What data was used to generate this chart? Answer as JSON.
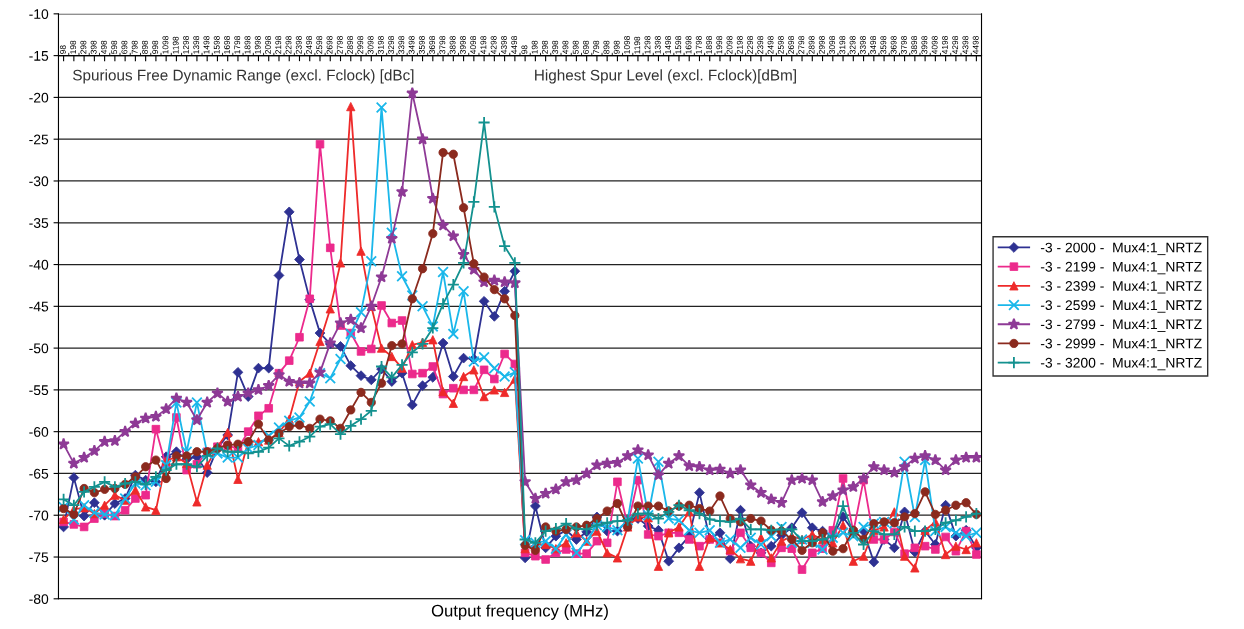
{
  "chart_data": {
    "type": "line",
    "xlabel": "Output frequency (MHz)",
    "categories": [
      "98",
      "198",
      "298",
      "398",
      "498",
      "598",
      "698",
      "798",
      "898",
      "998",
      "1098",
      "1198",
      "1298",
      "1398",
      "1498",
      "1598",
      "1698",
      "1798",
      "1898",
      "1998",
      "2098",
      "2198",
      "2298",
      "2398",
      "2498",
      "2598",
      "2698",
      "2798",
      "2898",
      "2998",
      "3098",
      "3198",
      "3298",
      "3398",
      "3498",
      "3598",
      "3698",
      "3798",
      "3898",
      "3998",
      "4098",
      "4198",
      "4298",
      "4398",
      "4498",
      "98",
      "198",
      "298",
      "398",
      "498",
      "598",
      "698",
      "798",
      "898",
      "998",
      "1098",
      "1198",
      "1298",
      "1398",
      "1498",
      "1598",
      "1698",
      "1798",
      "1898",
      "1998",
      "2098",
      "2198",
      "2298",
      "2398",
      "2498",
      "2598",
      "2698",
      "2798",
      "2898",
      "2998",
      "3098",
      "3198",
      "3298",
      "3398",
      "3498",
      "3598",
      "3698",
      "3798",
      "3898",
      "3998",
      "4098",
      "4198",
      "4298",
      "4398",
      "4498"
    ],
    "annotations": [
      "Spurious Free Dynamic Range (excl. Fclock) [dBc]",
      "Highest Spur Level (excl. Fclock)[dBm]"
    ],
    "ylim": [
      -80,
      -10
    ],
    "yticks": [
      -80,
      -75,
      -70,
      -65,
      -60,
      -55,
      -50,
      -45,
      -40,
      -35,
      -30,
      -25,
      -20,
      -15,
      -10
    ],
    "grid": "y",
    "legend": "right",
    "series": [
      {
        "name": "-3 - 2000 -  Mux4:1_NRTZ",
        "color": "#2e3192",
        "marker": "diamond",
        "values": [
          -71.4,
          -65.5,
          -70.1,
          -68.5,
          -70,
          -68.6,
          -68,
          -65.2,
          -65.8,
          -66,
          -63,
          -62.4,
          -63.3,
          -63,
          -64.9,
          -62,
          -60.4,
          -52.9,
          -55.8,
          -52.4,
          -52.4,
          -41.3,
          -33.7,
          -39.4,
          -44.2,
          -48.2,
          -49.5,
          -49.8,
          -52.1,
          -53.3,
          -53.8,
          -52.5,
          -54,
          -53,
          -56.8,
          -54.5,
          -53.5,
          -49.4,
          -53.4,
          -51.2,
          -51.3,
          -44.4,
          -46.2,
          -43.2,
          -40.8,
          -75.1,
          -68.9,
          -73.9,
          -72.5,
          -71.8,
          -72.9,
          -72,
          -70.2,
          -71.9,
          -71.9,
          -70.6,
          -70.4,
          -71.3,
          -71.8,
          -75.5,
          -73.9,
          -72.5,
          -67.3,
          -72.8,
          -72.1,
          -75.2,
          -69.4,
          -73.7,
          -74.5,
          -73.7,
          -72.4,
          -71.5,
          -69.7,
          -71.5,
          -71.9,
          -72.5,
          -70.2,
          -71.9,
          -71.9,
          -75.6,
          -72.9,
          -73.9,
          -69.6,
          -74.4,
          -71.9,
          -73.5,
          -68.8,
          -72.5,
          -71.8,
          -73.9
        ]
      },
      {
        "name": "-3 - 2199 -  Mux4:1_NRTZ",
        "color": "#ec2a8c",
        "marker": "square",
        "values": [
          -70.8,
          -71.1,
          -71.4,
          -70.4,
          -69.8,
          -70.1,
          -69.4,
          -68,
          -67.6,
          -59.7,
          -64.2,
          -58.3,
          -64.6,
          -63.9,
          -62.4,
          -61.8,
          -61.7,
          -62,
          -60,
          -58.1,
          -57.2,
          -53,
          -51.5,
          -48.7,
          -44.1,
          -25.6,
          -38,
          -47.3,
          -48.2,
          -50.4,
          -50.1,
          -44.9,
          -47,
          -46.7,
          -53.1,
          -53,
          -52.2,
          -55.5,
          -54.8,
          -55,
          -55,
          -52.6,
          -53.7,
          -50.7,
          -51.9,
          -74.5,
          -74.9,
          -75.3,
          -74.5,
          -74.1,
          -74.6,
          -74.6,
          -73.1,
          -73.3,
          -66,
          -71.2,
          -65.8,
          -72.3,
          -72.5,
          -72.1,
          -72.1,
          -72.9,
          -73.7,
          -72.9,
          -73.3,
          -74.3,
          -72.1,
          -73.9,
          -74.5,
          -75.7,
          -73.9,
          -74,
          -76.5,
          -74.5,
          -74,
          -71.8,
          -65.6,
          -72,
          -65.8,
          -72.9,
          -72.9,
          -72,
          -74.6,
          -73.9,
          -73.7,
          -74.1,
          -72.6,
          -74.3,
          -71.9,
          -74.7
        ]
      },
      {
        "name": "-3 - 2399 -  Mux4:1_NRTZ",
        "color": "#ee2a2a",
        "marker": "triangle",
        "values": [
          -70.5,
          -69.3,
          -69.1,
          -69.8,
          -68.8,
          -67.6,
          -68.2,
          -67,
          -69,
          -69.4,
          -63.5,
          -63,
          -63.8,
          -68.4,
          -64,
          -61.8,
          -60.1,
          -65.7,
          -61.2,
          -61.2,
          -61,
          -60.1,
          -58.5,
          -54,
          -53,
          -49.2,
          -45.3,
          -39.8,
          -21.1,
          -38.4,
          -45,
          -50,
          -51,
          -52.4,
          -49.6,
          -49.3,
          -49,
          -55.2,
          -56.6,
          -53.4,
          -52.6,
          -55.8,
          -55,
          -55.3,
          -53.7,
          -74,
          -73.5,
          -73.5,
          -74,
          -73.3,
          -72.1,
          -73.1,
          -71.9,
          -74.5,
          -75.1,
          -71.4,
          -70.2,
          -70.3,
          -76.1,
          -72.1,
          -71.4,
          -69.6,
          -76.1,
          -72.7,
          -73.3,
          -74.1,
          -75.2,
          -75.5,
          -72.7,
          -75.1,
          -73.1,
          -72.5,
          -72.9,
          -72.3,
          -72.9,
          -73.3,
          -71.2,
          -75.5,
          -74.9,
          -71.8,
          -71.4,
          -69.6,
          -74.9,
          -76.3,
          -71.8,
          -70.8,
          -74.7,
          -73.7,
          -74.1,
          -73.3
        ]
      },
      {
        "name": "-3 - 2599 -  Mux4:1_NRTZ",
        "color": "#1ab7ea",
        "marker": "cross",
        "values": [
          -69,
          -70.5,
          -68.8,
          -69.7,
          -69.9,
          -70,
          -68,
          -66.2,
          -66.4,
          -66,
          -64,
          -56.5,
          -62.4,
          -56.5,
          -62.6,
          -62.6,
          -63.1,
          -63.1,
          -62,
          -61.6,
          -60.5,
          -59.5,
          -58.7,
          -58.3,
          -56.4,
          -53,
          -53.6,
          -51.3,
          -48.3,
          -45.7,
          -39.6,
          -21.2,
          -36.2,
          -41.4,
          -43.7,
          -45,
          -47.4,
          -40.9,
          -48.3,
          -43.2,
          -51.6,
          -51.1,
          -52.4,
          -53.4,
          -52.9,
          -73,
          -73.3,
          -73.1,
          -74,
          -72.3,
          -74.5,
          -73.1,
          -71.2,
          -71.4,
          -71.8,
          -70.6,
          -63.2,
          -70,
          -63.6,
          -70.4,
          -70.6,
          -71.8,
          -72.1,
          -71.8,
          -73.3,
          -72.9,
          -73.9,
          -72.7,
          -73.5,
          -72.5,
          -71.4,
          -73.3,
          -72.9,
          -73.3,
          -74.1,
          -72.7,
          -72.1,
          -72.5,
          -71.4,
          -71,
          -70.8,
          -71,
          -63.6,
          -70.2,
          -63.4,
          -71.9,
          -71.4,
          -72.1,
          -72.5,
          -72.1
        ]
      },
      {
        "name": "-3 - 2799 -  Mux4:1_NRTZ",
        "color": "#8e3a96",
        "marker": "star",
        "values": [
          -61.5,
          -63.8,
          -63.1,
          -62.3,
          -61.2,
          -61.1,
          -60,
          -59,
          -58.4,
          -58.2,
          -57.3,
          -56,
          -56.5,
          -58.6,
          -56.5,
          -55.4,
          -56.4,
          -55.8,
          -55.4,
          -55,
          -54.5,
          -53.2,
          -54,
          -54.2,
          -54.2,
          -52.9,
          -49.4,
          -47,
          -46.6,
          -47.6,
          -45,
          -41.5,
          -36.9,
          -31.3,
          -19.5,
          -25,
          -32.1,
          -35.3,
          -36.6,
          -38.8,
          -40.6,
          -42.1,
          -41.9,
          -42.1,
          -42.2,
          -66,
          -68,
          -67.4,
          -66.9,
          -66,
          -65.8,
          -65,
          -64,
          -63.8,
          -63.7,
          -62.9,
          -62.2,
          -62.8,
          -65.2,
          -63.8,
          -62.9,
          -64.1,
          -64.2,
          -64.6,
          -64.5,
          -65,
          -64.6,
          -66.4,
          -67.3,
          -68.1,
          -68.5,
          -65.8,
          -65.6,
          -65.8,
          -68.4,
          -67.7,
          -67,
          -66.6,
          -65.6,
          -64.2,
          -64.6,
          -64.9,
          -64.2,
          -63.2,
          -62.9,
          -63.4,
          -64.6,
          -63.4,
          -63.1,
          -63.1
        ]
      },
      {
        "name": "-3 - 2999 -  Mux4:1_NRTZ",
        "color": "#8b2a1e",
        "marker": "circle",
        "values": [
          -69.2,
          -69.9,
          -66.8,
          -67.3,
          -66.9,
          -66.8,
          -66.3,
          -65.4,
          -64.2,
          -63.4,
          -65.6,
          -62.9,
          -62.9,
          -62.4,
          -62.4,
          -62,
          -61.6,
          -61.5,
          -61.2,
          -59.1,
          -61,
          -60.2,
          -59.4,
          -59.2,
          -59.6,
          -58.5,
          -58.7,
          -59.6,
          -57.4,
          -55.3,
          -56.5,
          -54.2,
          -49.7,
          -49.5,
          -44.1,
          -40.5,
          -36.3,
          -26.6,
          -26.8,
          -33.2,
          -39.9,
          -41.5,
          -43,
          -44.1,
          -46.1,
          -73.6,
          -74.2,
          -71.4,
          -71.9,
          -71.7,
          -71.4,
          -71.2,
          -70.4,
          -69.5,
          -68.6,
          -71.4,
          -68.9,
          -68.9,
          -68.9,
          -69.5,
          -68.9,
          -68.8,
          -69.2,
          -69.5,
          -67.7,
          -70.4,
          -70.8,
          -70.4,
          -70.7,
          -71.8,
          -71.9,
          -72.9,
          -74.2,
          -73.3,
          -72.1,
          -74.3,
          -74,
          -71.8,
          -72.9,
          -71,
          -70.8,
          -70.9,
          -70.2,
          -69.8,
          -67.2,
          -69.9,
          -69.4,
          -68.8,
          -68.5,
          -69.9
        ]
      },
      {
        "name": "-3 - 3200 -  Mux4:1_NRTZ",
        "color": "#13918f",
        "marker": "plus",
        "values": [
          -68.1,
          -68.8,
          -67.2,
          -66.6,
          -66,
          -66.6,
          -66.2,
          -66,
          -66.3,
          -65.4,
          -64.6,
          -63.9,
          -63.9,
          -64.2,
          -62.9,
          -62,
          -62.4,
          -62.4,
          -62.6,
          -62.4,
          -61.9,
          -60.8,
          -61.7,
          -61.2,
          -60.6,
          -59.4,
          -59.1,
          -60.3,
          -59.3,
          -58.5,
          -57.5,
          -52.2,
          -53.5,
          -52,
          -50.5,
          -49.5,
          -47.6,
          -44.7,
          -42.4,
          -39.8,
          -32.5,
          -23,
          -33.1,
          -37.8,
          -39.8,
          -72.9,
          -73.3,
          -71.9,
          -71.6,
          -71,
          -71.6,
          -71.7,
          -71.2,
          -70.9,
          -70.7,
          -70.6,
          -69.8,
          -69.8,
          -70.4,
          -69.6,
          -68.8,
          -69.4,
          -69.8,
          -70.5,
          -70.7,
          -70.8,
          -70.4,
          -71.7,
          -71.7,
          -71.8,
          -71.7,
          -71.7,
          -73.1,
          -73.1,
          -72.9,
          -72.5,
          -68.9,
          -72.1,
          -73.5,
          -71.9,
          -72.3,
          -72.3,
          -71.4,
          -71.9,
          -71.9,
          -71.7,
          -70.9,
          -70.6,
          -70.2,
          -69.8
        ]
      }
    ]
  }
}
